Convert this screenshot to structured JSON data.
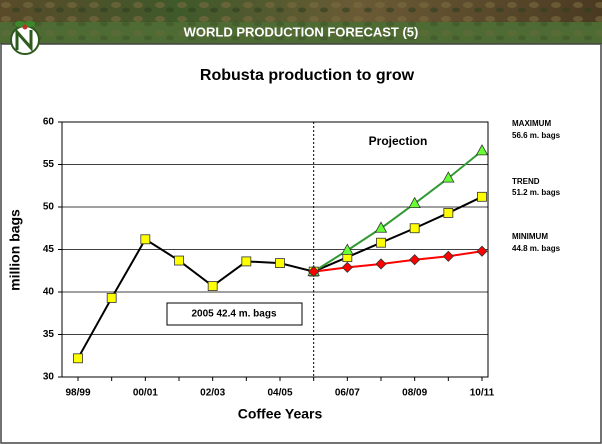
{
  "header": {
    "title": "WORLD PRODUCTION FORECAST (5)"
  },
  "chart_data": {
    "type": "line",
    "title": "Robusta production to grow",
    "y_label": "million bags",
    "x_label": "Coffee Years",
    "categories": [
      "98/99",
      null,
      "00/01",
      null,
      "02/03",
      null,
      "04/05",
      null,
      "06/07",
      null,
      "08/09",
      null,
      "10/11"
    ],
    "series": [
      {
        "color": "#000000",
        "marker": "square",
        "marker_color": "#ffff00",
        "values": [
          32.2,
          39.3,
          46.2,
          43.7,
          40.7,
          43.6,
          43.4,
          42.4,
          44.1,
          45.8,
          47.5,
          49.3,
          51.2
        ]
      },
      {
        "color": "#339933",
        "marker": "triangle",
        "marker_color": "#66ff33",
        "values": [
          null,
          null,
          null,
          null,
          null,
          null,
          null,
          42.4,
          44.9,
          47.5,
          50.4,
          53.4,
          56.6
        ]
      },
      {
        "color": "#ff0000",
        "marker": "diamond",
        "marker_color": "#ff0000",
        "values": [
          null,
          null,
          null,
          null,
          null,
          null,
          null,
          42.4,
          42.9,
          43.3,
          43.8,
          44.2,
          44.8
        ]
      }
    ],
    "ylim": [
      30,
      60
    ],
    "yticks": [
      30,
      35,
      40,
      45,
      50,
      55,
      60
    ],
    "grid": true,
    "annotations": [
      "Projection",
      "2005 42.4 m. bags",
      "MAXIMUM",
      "56.6 m. bags",
      "TREND",
      "51.2 m. bags",
      "MINIMUM",
      "44.8 m. bags"
    ]
  }
}
